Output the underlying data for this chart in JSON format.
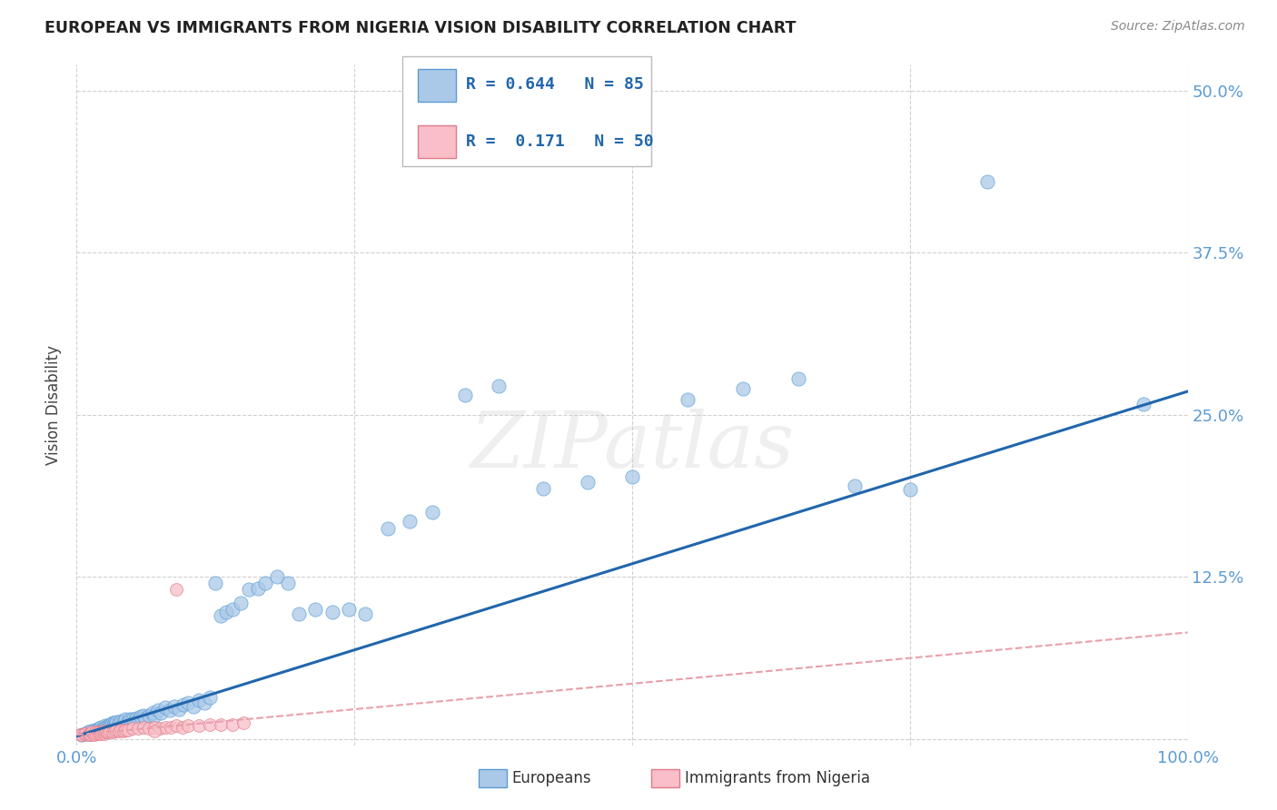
{
  "title": "EUROPEAN VS IMMIGRANTS FROM NIGERIA VISION DISABILITY CORRELATION CHART",
  "source": "Source: ZipAtlas.com",
  "ylabel": "Vision Disability",
  "yticks": [
    0.0,
    0.125,
    0.25,
    0.375,
    0.5
  ],
  "ytick_labels_right": [
    "",
    "12.5%",
    "25.0%",
    "37.5%",
    "50.0%"
  ],
  "xlim": [
    0.0,
    1.0
  ],
  "ylim": [
    -0.005,
    0.52
  ],
  "blue_scatter_color": "#aac9e8",
  "blue_scatter_edge": "#5b9bd5",
  "pink_scatter_color": "#f9bec7",
  "pink_scatter_edge": "#e07a8a",
  "blue_line_color": "#2166ac",
  "pink_line_color": "#e8a0aa",
  "watermark": "ZIPatlas",
  "blue_x": [
    0.005,
    0.008,
    0.01,
    0.012,
    0.013,
    0.015,
    0.016,
    0.017,
    0.018,
    0.019,
    0.02,
    0.021,
    0.022,
    0.023,
    0.024,
    0.025,
    0.026,
    0.027,
    0.028,
    0.029,
    0.03,
    0.031,
    0.032,
    0.033,
    0.034,
    0.035,
    0.036,
    0.038,
    0.04,
    0.042,
    0.044,
    0.046,
    0.048,
    0.05,
    0.052,
    0.054,
    0.056,
    0.058,
    0.06,
    0.062,
    0.065,
    0.068,
    0.07,
    0.073,
    0.076,
    0.08,
    0.084,
    0.088,
    0.092,
    0.096,
    0.1,
    0.105,
    0.11,
    0.115,
    0.12,
    0.125,
    0.13,
    0.135,
    0.14,
    0.148,
    0.155,
    0.163,
    0.17,
    0.18,
    0.19,
    0.2,
    0.215,
    0.23,
    0.245,
    0.26,
    0.28,
    0.3,
    0.32,
    0.35,
    0.38,
    0.42,
    0.46,
    0.5,
    0.55,
    0.6,
    0.65,
    0.7,
    0.75,
    0.82,
    0.96
  ],
  "blue_y": [
    0.003,
    0.004,
    0.005,
    0.004,
    0.006,
    0.005,
    0.007,
    0.005,
    0.007,
    0.006,
    0.008,
    0.007,
    0.009,
    0.007,
    0.008,
    0.008,
    0.01,
    0.009,
    0.01,
    0.009,
    0.011,
    0.01,
    0.012,
    0.01,
    0.012,
    0.011,
    0.013,
    0.012,
    0.014,
    0.013,
    0.015,
    0.013,
    0.015,
    0.015,
    0.014,
    0.016,
    0.015,
    0.017,
    0.018,
    0.016,
    0.018,
    0.02,
    0.018,
    0.022,
    0.02,
    0.024,
    0.022,
    0.025,
    0.023,
    0.026,
    0.028,
    0.025,
    0.03,
    0.028,
    0.032,
    0.12,
    0.095,
    0.098,
    0.1,
    0.105,
    0.115,
    0.116,
    0.12,
    0.125,
    0.12,
    0.096,
    0.1,
    0.098,
    0.1,
    0.096,
    0.162,
    0.168,
    0.175,
    0.265,
    0.272,
    0.193,
    0.198,
    0.202,
    0.262,
    0.27,
    0.278,
    0.195,
    0.192,
    0.43,
    0.258
  ],
  "pink_x": [
    0.003,
    0.005,
    0.007,
    0.008,
    0.01,
    0.011,
    0.012,
    0.013,
    0.014,
    0.015,
    0.016,
    0.017,
    0.018,
    0.019,
    0.02,
    0.021,
    0.022,
    0.023,
    0.024,
    0.025,
    0.026,
    0.027,
    0.028,
    0.03,
    0.032,
    0.034,
    0.036,
    0.038,
    0.04,
    0.042,
    0.044,
    0.046,
    0.05,
    0.055,
    0.06,
    0.065,
    0.07,
    0.075,
    0.08,
    0.085,
    0.09,
    0.095,
    0.1,
    0.11,
    0.12,
    0.13,
    0.14,
    0.15,
    0.09,
    0.07
  ],
  "pink_y": [
    0.003,
    0.003,
    0.004,
    0.004,
    0.003,
    0.004,
    0.004,
    0.003,
    0.005,
    0.004,
    0.003,
    0.005,
    0.004,
    0.005,
    0.004,
    0.005,
    0.004,
    0.005,
    0.006,
    0.004,
    0.005,
    0.006,
    0.005,
    0.006,
    0.005,
    0.006,
    0.007,
    0.006,
    0.007,
    0.006,
    0.007,
    0.007,
    0.008,
    0.008,
    0.009,
    0.008,
    0.009,
    0.008,
    0.009,
    0.009,
    0.01,
    0.009,
    0.01,
    0.01,
    0.011,
    0.011,
    0.011,
    0.012,
    0.115,
    0.006
  ],
  "blue_line_y_start": 0.002,
  "blue_line_y_end": 0.268,
  "pink_line_y_start": 0.003,
  "pink_line_y_end": 0.082,
  "background_color": "#ffffff",
  "grid_color": "#d0d0d0",
  "title_color": "#222222",
  "tick_color": "#5b9bd5"
}
